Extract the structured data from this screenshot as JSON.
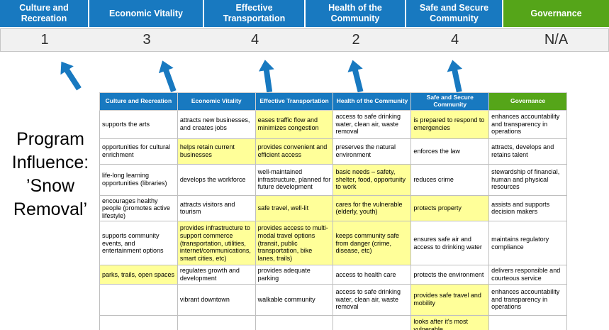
{
  "title": "Program Influence: ’Snow Removal’",
  "colors": {
    "pillar_blue": "#1879C0",
    "governance_green": "#55A519",
    "highlight_yellow": "#FFFF99",
    "score_band_gray": "#F1F1F1",
    "arrow_blue": "#1879C0"
  },
  "pillars": [
    {
      "label": "Culture and Recreation",
      "score": "1"
    },
    {
      "label": "Economic Vitality",
      "score": "3"
    },
    {
      "label": "Effective Transportation",
      "score": "4"
    },
    {
      "label": "Health of the Community",
      "score": "2"
    },
    {
      "label": "Safe and Secure Community",
      "score": "4"
    },
    {
      "label": "Governance",
      "score": "N/A"
    }
  ],
  "table": {
    "headers": [
      "Culture and Recreation",
      "Economic Vitality",
      "Effective Transportation",
      "Health of the Community",
      "Safe and Secure Community",
      "Governance"
    ],
    "rows": [
      [
        {
          "text": "supports the arts",
          "hl": false
        },
        {
          "text": "attracts new businesses, and creates jobs",
          "hl": false
        },
        {
          "text": "eases traffic flow and minimizes congestion",
          "hl": true
        },
        {
          "text": "access to safe drinking water, clean air, waste removal",
          "hl": false
        },
        {
          "text": "is prepared to respond to emergencies",
          "hl": true
        },
        {
          "text": "enhances accountability and transparency in operations",
          "hl": false
        }
      ],
      [
        {
          "text": "opportunities for cultural enrichment",
          "hl": false
        },
        {
          "text": "helps retain current businesses",
          "hl": true
        },
        {
          "text": "provides convenient and efficient access",
          "hl": true
        },
        {
          "text": "preserves the natural environment",
          "hl": false
        },
        {
          "text": "enforces the law",
          "hl": false
        },
        {
          "text": "attracts, develops and retains talent",
          "hl": false
        }
      ],
      [
        {
          "text": "life-long learning opportunities (libraries)",
          "hl": false
        },
        {
          "text": "develops the workforce",
          "hl": false
        },
        {
          "text": "well-maintained infrastructure, planned for future development",
          "hl": false
        },
        {
          "text": "basic needs – safety, shelter, food, opportunity to work",
          "hl": true
        },
        {
          "text": "reduces crime",
          "hl": false
        },
        {
          "text": "stewardship of financial, human and physical resources",
          "hl": false
        }
      ],
      [
        {
          "text": "encourages healthy people (promotes active lifestyle)",
          "hl": false
        },
        {
          "text": "attracts visitors and tourism",
          "hl": false
        },
        {
          "text": "safe travel, well-lit",
          "hl": true
        },
        {
          "text": "cares for the vulnerable (elderly, youth)",
          "hl": true
        },
        {
          "text": "protects property",
          "hl": true
        },
        {
          "text": "assists and supports decision makers",
          "hl": false
        }
      ],
      [
        {
          "text": "supports community events, and entertainment options",
          "hl": false
        },
        {
          "text": "provides infrastructure to support commerce (transportation, utilities, internet/communications, smart cities, etc)",
          "hl": true
        },
        {
          "text": "provides access to multi-modal travel options (transit, public transportation, bike lanes, trails)",
          "hl": true
        },
        {
          "text": "keeps community safe from danger (crime, disease, etc)",
          "hl": true
        },
        {
          "text": "ensures safe air and access to drinking water",
          "hl": false
        },
        {
          "text": "maintains regulatory compliance",
          "hl": false
        }
      ],
      [
        {
          "text": "parks, trails, open spaces",
          "hl": true
        },
        {
          "text": "regulates growth and development",
          "hl": false
        },
        {
          "text": "provides adequate parking",
          "hl": false
        },
        {
          "text": "access to health care",
          "hl": false
        },
        {
          "text": "protects the environment",
          "hl": false
        },
        {
          "text": "delivers responsible and courteous service",
          "hl": false
        }
      ],
      [
        {
          "text": "",
          "hl": false
        },
        {
          "text": "vibrant downtown",
          "hl": false
        },
        {
          "text": "walkable community",
          "hl": false
        },
        {
          "text": "access to safe drinking water, clean air, waste removal",
          "hl": false
        },
        {
          "text": "provides safe travel and mobility",
          "hl": true
        },
        {
          "text": "enhances accountability and transparency in operations",
          "hl": false
        }
      ],
      [
        {
          "text": "",
          "hl": false
        },
        {
          "text": "",
          "hl": false
        },
        {
          "text": "",
          "hl": false
        },
        {
          "text": "",
          "hl": false
        },
        {
          "text": "looks after it's most vulnerable",
          "hl": true
        },
        {
          "text": "",
          "hl": false
        }
      ]
    ]
  }
}
